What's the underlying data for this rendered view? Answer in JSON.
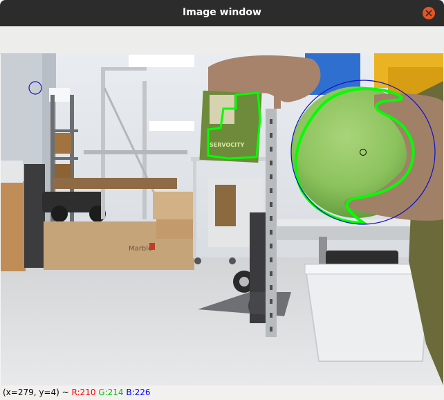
{
  "window": {
    "title": "Image window"
  },
  "statusbar": {
    "coords": "(x=279, y=4) ~",
    "r": "R:210",
    "g": "G:214",
    "b": "B:226",
    "colors": {
      "r": "#ff0000",
      "g": "#00c000",
      "b": "#0000ff"
    }
  },
  "image": {
    "sign_text": "SERVOCITY",
    "box_label": "Marble",
    "overlay_colors": {
      "contour": "#00ff00",
      "circle": "#0000ff",
      "center": "#000000"
    }
  },
  "icons": {
    "close": "close-icon"
  }
}
